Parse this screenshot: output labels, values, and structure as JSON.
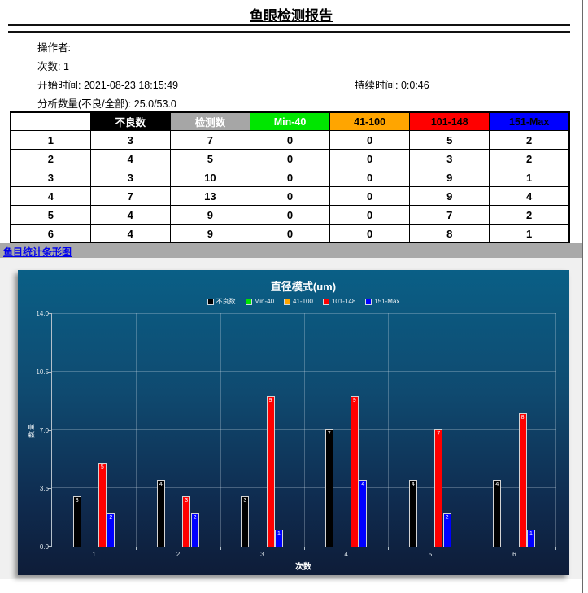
{
  "report": {
    "title": "鱼眼检测报告",
    "meta": {
      "operator_label": "操作者:",
      "count_line": "次数: 1",
      "start_time_line": "开始时间: 2021-08-23 18:15:49",
      "duration_line": "持续时间: 0:0:46",
      "analysis_line": "分析数量(不良/全部): 25.0/53.0"
    }
  },
  "table": {
    "headers": [
      {
        "label": "",
        "bg": "#ffffff",
        "fg": "#000000"
      },
      {
        "label": "不良数",
        "bg": "#000000",
        "fg": "#ffffff"
      },
      {
        "label": "检测数",
        "bg": "#a6a6a6",
        "fg": "#ffffff"
      },
      {
        "label": "Min-40",
        "bg": "#00e600",
        "fg": "#ffffff"
      },
      {
        "label": "41-100",
        "bg": "#ffa500",
        "fg": "#000000"
      },
      {
        "label": "101-148",
        "bg": "#ff0000",
        "fg": "#000000"
      },
      {
        "label": "151-Max",
        "bg": "#0000ff",
        "fg": "#000000"
      }
    ],
    "rows": [
      [
        "1",
        "3",
        "7",
        "0",
        "0",
        "5",
        "2"
      ],
      [
        "2",
        "4",
        "5",
        "0",
        "0",
        "3",
        "2"
      ],
      [
        "3",
        "3",
        "10",
        "0",
        "0",
        "9",
        "1"
      ],
      [
        "4",
        "7",
        "13",
        "0",
        "0",
        "9",
        "4"
      ],
      [
        "5",
        "4",
        "9",
        "0",
        "0",
        "7",
        "2"
      ],
      [
        "6",
        "4",
        "9",
        "0",
        "0",
        "8",
        "1"
      ]
    ]
  },
  "section_link": {
    "label": "鱼目统计条形图"
  },
  "chart_data": {
    "type": "bar",
    "title": "直径模式(um)",
    "xlabel": "次数",
    "ylabel": "数量",
    "categories": [
      "1",
      "2",
      "3",
      "4",
      "5",
      "6"
    ],
    "series": [
      {
        "name": "不良数",
        "color": "#000000",
        "values": [
          3,
          4,
          3,
          7,
          4,
          4
        ]
      },
      {
        "name": "Min-40",
        "color": "#00e600",
        "values": [
          0,
          0,
          0,
          0,
          0,
          0
        ]
      },
      {
        "name": "41-100",
        "color": "#ffa500",
        "values": [
          0,
          0,
          0,
          0,
          0,
          0
        ]
      },
      {
        "name": "101-148",
        "color": "#ff0000",
        "values": [
          5,
          3,
          9,
          9,
          7,
          8
        ]
      },
      {
        "name": "151-Max",
        "color": "#0000ff",
        "values": [
          2,
          2,
          1,
          4,
          2,
          1
        ]
      }
    ],
    "ylim": [
      0,
      14
    ],
    "yticks": [
      0.0,
      3.5,
      7.0,
      10.5,
      14.0
    ],
    "grid": true,
    "legend_position": "top",
    "background_gradient": [
      "#0a5f86",
      "#0e1c38"
    ]
  }
}
